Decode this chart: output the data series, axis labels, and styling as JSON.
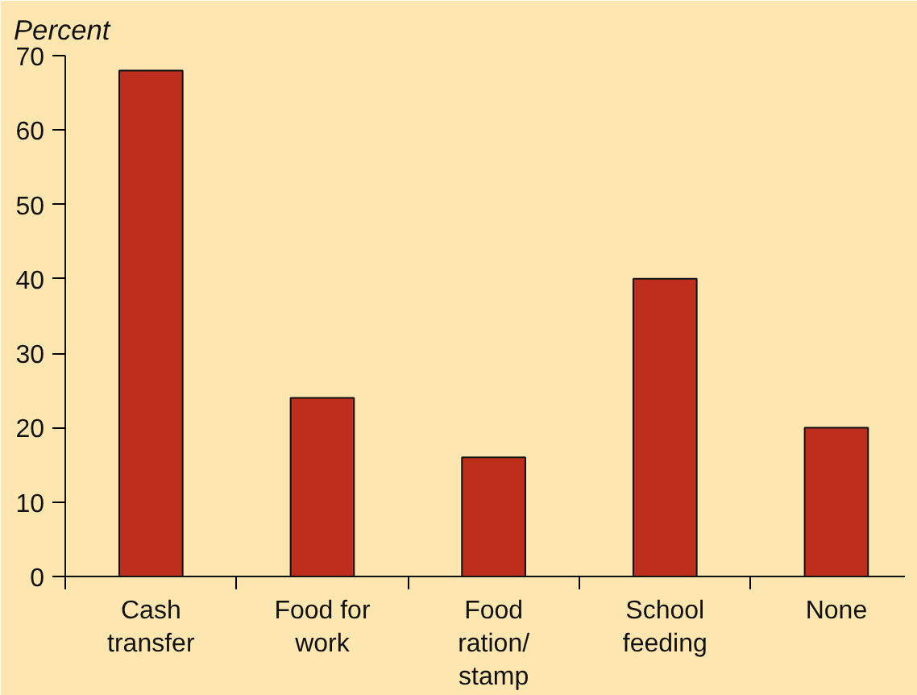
{
  "chart_data": {
    "type": "bar",
    "ylabel": "Percent",
    "categories": [
      "Cash transfer",
      "Food for work",
      "Food ration/ stamp",
      "School feeding",
      "None"
    ],
    "values": [
      68,
      24,
      16,
      40,
      20
    ],
    "color": "#bd2f1c",
    "ylim": [
      0,
      70
    ],
    "yticks": [
      0,
      10,
      20,
      30,
      40,
      50,
      60,
      70
    ],
    "grid": false
  }
}
